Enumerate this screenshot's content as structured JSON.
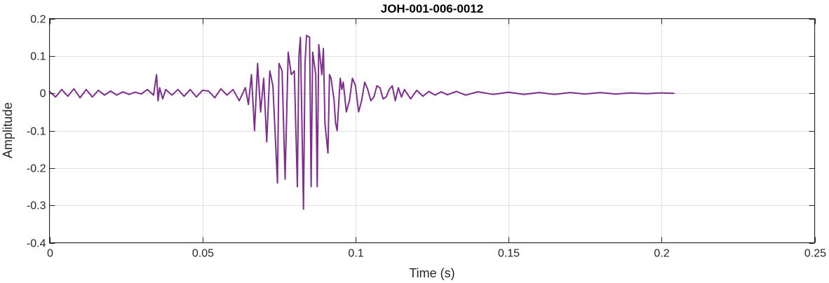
{
  "chart_data": {
    "type": "line",
    "title": "JOH-001-006-0012",
    "xlabel": "Time (s)",
    "ylabel": "Amplitude",
    "xlim": [
      0,
      0.25
    ],
    "ylim": [
      -0.4,
      0.2
    ],
    "xticks": [
      0,
      0.05,
      0.1,
      0.15,
      0.2,
      0.25
    ],
    "xtick_labels": [
      "0",
      "0.05",
      "0.1",
      "0.15",
      "0.2",
      "0.25"
    ],
    "yticks": [
      -0.4,
      -0.3,
      -0.2,
      -0.1,
      0,
      0.1,
      0.2
    ],
    "ytick_labels": [
      "-0.4",
      "-0.3",
      "-0.2",
      "-0.1",
      "0",
      "0.1",
      "0.2"
    ],
    "grid": true,
    "series": [
      {
        "color": "#7e2f8e",
        "x": [
          0,
          0.002,
          0.004,
          0.006,
          0.008,
          0.01,
          0.012,
          0.014,
          0.016,
          0.018,
          0.02,
          0.022,
          0.024,
          0.026,
          0.028,
          0.03,
          0.032,
          0.034,
          0.035,
          0.0355,
          0.036,
          0.037,
          0.038,
          0.04,
          0.042,
          0.044,
          0.046,
          0.048,
          0.05,
          0.052,
          0.054,
          0.056,
          0.058,
          0.06,
          0.062,
          0.064,
          0.065,
          0.066,
          0.067,
          0.068,
          0.069,
          0.07,
          0.071,
          0.072,
          0.073,
          0.0745,
          0.075,
          0.076,
          0.077,
          0.078,
          0.079,
          0.08,
          0.081,
          0.0815,
          0.082,
          0.083,
          0.0835,
          0.084,
          0.085,
          0.0855,
          0.086,
          0.087,
          0.0875,
          0.088,
          0.089,
          0.0895,
          0.09,
          0.091,
          0.0915,
          0.092,
          0.093,
          0.0935,
          0.094,
          0.095,
          0.0955,
          0.096,
          0.097,
          0.098,
          0.099,
          0.1,
          0.101,
          0.102,
          0.103,
          0.104,
          0.105,
          0.106,
          0.107,
          0.108,
          0.109,
          0.11,
          0.111,
          0.112,
          0.113,
          0.114,
          0.115,
          0.116,
          0.118,
          0.12,
          0.122,
          0.124,
          0.126,
          0.128,
          0.13,
          0.133,
          0.136,
          0.14,
          0.145,
          0.15,
          0.155,
          0.16,
          0.165,
          0.17,
          0.175,
          0.18,
          0.185,
          0.19,
          0.195,
          0.2,
          0.204
        ],
        "y": [
          0.005,
          -0.01,
          0.01,
          -0.008,
          0.012,
          -0.012,
          0.01,
          -0.01,
          0.008,
          -0.005,
          0.006,
          -0.005,
          0.004,
          -0.003,
          0.003,
          -0.002,
          0.01,
          -0.005,
          0.05,
          -0.02,
          0.015,
          -0.015,
          0.01,
          -0.005,
          0.01,
          -0.008,
          0.01,
          -0.01,
          0.008,
          0.006,
          -0.012,
          0.012,
          -0.005,
          0.01,
          -0.02,
          0.015,
          -0.03,
          0.05,
          -0.1,
          0.08,
          -0.05,
          0.04,
          -0.13,
          0.06,
          0.02,
          -0.24,
          0.08,
          0.06,
          -0.23,
          0.11,
          0.05,
          0.06,
          -0.25,
          0.1,
          0.15,
          -0.31,
          0.08,
          0.155,
          0.15,
          -0.25,
          0.11,
          0.05,
          -0.25,
          0.13,
          0.05,
          0.12,
          -0.08,
          -0.16,
          0.05,
          0.04,
          -0.02,
          -0.08,
          -0.1,
          0.04,
          0.01,
          0.03,
          -0.05,
          -0.02,
          0.04,
          0.02,
          -0.05,
          -0.02,
          0.03,
          0.01,
          -0.02,
          -0.01,
          0.02,
          0.015,
          -0.015,
          -0.01,
          0.01,
          0.02,
          -0.02,
          0.015,
          -0.01,
          0.01,
          -0.015,
          0.008,
          -0.008,
          0.005,
          -0.005,
          0.004,
          -0.004,
          0.005,
          -0.005,
          0.004,
          -0.003,
          0.003,
          -0.003,
          0.002,
          -0.003,
          0.002,
          -0.002,
          0.002,
          -0.002,
          0.001,
          -0.001,
          0.001,
          0
        ]
      }
    ]
  }
}
